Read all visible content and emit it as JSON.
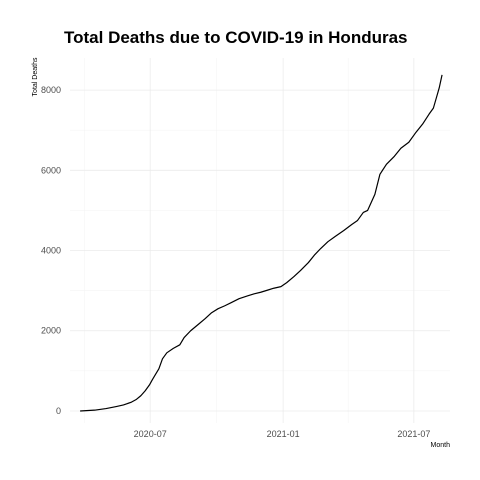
{
  "chart_data": {
    "type": "line",
    "title": "Total Deaths due to COVID-19 in Honduras",
    "xlabel": "Month",
    "ylabel": "Total Deaths",
    "xlim": [
      "2020-03-12",
      "2021-08-20"
    ],
    "ylim": [
      -300,
      8800
    ],
    "x_ticks": [
      {
        "value": "2020-07-01",
        "label": "2020-07"
      },
      {
        "value": "2021-01-01",
        "label": "2021-01"
      },
      {
        "value": "2021-07-01",
        "label": "2021-07"
      }
    ],
    "x_minor_ticks": [
      "2020-04-01",
      "2020-10-01",
      "2021-04-01"
    ],
    "y_ticks": [
      0,
      2000,
      4000,
      6000,
      8000
    ],
    "y_minor_ticks": [
      1000,
      3000,
      5000,
      7000
    ],
    "grid": true,
    "legend": "none",
    "series": [
      {
        "color": "#000000",
        "x": [
          "2020-03-26",
          "2020-04-15",
          "2020-05-01",
          "2020-05-15",
          "2020-05-25",
          "2020-06-05",
          "2020-06-12",
          "2020-06-18",
          "2020-06-24",
          "2020-06-30",
          "2020-07-04",
          "2020-07-08",
          "2020-07-13",
          "2020-07-18",
          "2020-07-24",
          "2020-08-02",
          "2020-08-11",
          "2020-08-17",
          "2020-08-26",
          "2020-09-05",
          "2020-09-15",
          "2020-09-24",
          "2020-10-03",
          "2020-10-12",
          "2020-10-21",
          "2020-11-01",
          "2020-11-13",
          "2020-11-22",
          "2020-12-01",
          "2020-12-10",
          "2020-12-19",
          "2020-12-29",
          "2021-01-06",
          "2021-01-16",
          "2021-01-25",
          "2021-02-05",
          "2021-02-14",
          "2021-02-22",
          "2021-03-04",
          "2021-03-14",
          "2021-03-26",
          "2021-04-06",
          "2021-04-14",
          "2021-04-22",
          "2021-04-28",
          "2021-05-03",
          "2021-05-08",
          "2021-05-15",
          "2021-05-24",
          "2021-06-04",
          "2021-06-13",
          "2021-06-24",
          "2021-07-04",
          "2021-07-13",
          "2021-07-22",
          "2021-07-28",
          "2021-08-01",
          "2021-08-05",
          "2021-08-09"
        ],
        "y": [
          0,
          20,
          60,
          110,
          150,
          220,
          290,
          380,
          500,
          650,
          780,
          900,
          1050,
          1300,
          1450,
          1560,
          1650,
          1830,
          2000,
          2150,
          2300,
          2450,
          2550,
          2620,
          2700,
          2800,
          2870,
          2920,
          2960,
          3010,
          3060,
          3100,
          3200,
          3350,
          3500,
          3700,
          3900,
          4050,
          4220,
          4350,
          4500,
          4650,
          4750,
          4950,
          5000,
          5200,
          5400,
          5900,
          6150,
          6350,
          6550,
          6700,
          6950,
          7150,
          7400,
          7550,
          7800,
          8050,
          8380
        ]
      }
    ]
  }
}
